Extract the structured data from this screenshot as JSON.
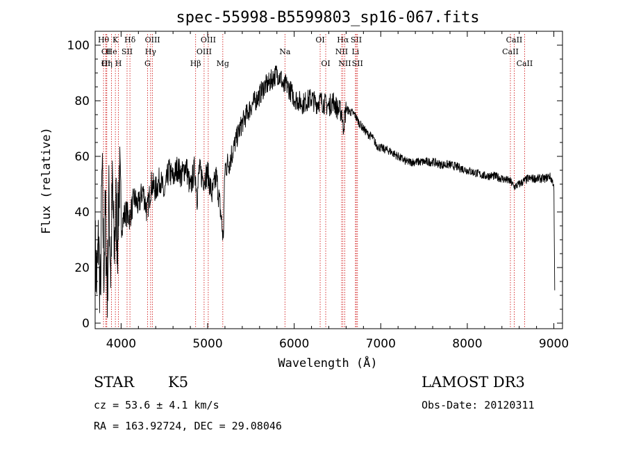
{
  "chart_data": {
    "type": "line",
    "title": "spec-55998-B5599803_sp16-067.fits",
    "xlabel": "Wavelength (Å)",
    "ylabel": "Flux (relative)",
    "xlim": [
      3700,
      9100
    ],
    "ylim": [
      -2,
      105
    ],
    "xticks": [
      4000,
      5000,
      6000,
      7000,
      8000,
      9000
    ],
    "yticks": [
      0,
      20,
      40,
      60,
      80,
      100
    ],
    "x": [
      3700,
      3720,
      3740,
      3760,
      3780,
      3800,
      3820,
      3840,
      3860,
      3880,
      3900,
      3920,
      3940,
      3960,
      3980,
      4000,
      4050,
      4100,
      4150,
      4200,
      4250,
      4300,
      4350,
      4400,
      4450,
      4500,
      4550,
      4600,
      4650,
      4700,
      4750,
      4800,
      4850,
      4880,
      4900,
      4950,
      5000,
      5050,
      5100,
      5150,
      5180,
      5200,
      5250,
      5300,
      5350,
      5400,
      5450,
      5500,
      5550,
      5600,
      5650,
      5700,
      5750,
      5800,
      5850,
      5880,
      5900,
      5950,
      6000,
      6050,
      6100,
      6150,
      6200,
      6250,
      6300,
      6350,
      6400,
      6450,
      6500,
      6550,
      6563,
      6600,
      6650,
      6700,
      6750,
      6800,
      6850,
      6900,
      6950,
      7000,
      7100,
      7200,
      7300,
      7400,
      7500,
      7600,
      7700,
      7800,
      7900,
      8000,
      8100,
      8200,
      8300,
      8400,
      8500,
      8540,
      8600,
      8650,
      8700,
      8800,
      8900,
      8950,
      9000,
      9010
    ],
    "values": [
      25,
      15,
      30,
      8,
      55,
      20,
      40,
      10,
      45,
      18,
      50,
      25,
      42,
      30,
      55,
      35,
      40,
      38,
      45,
      42,
      48,
      40,
      50,
      48,
      52,
      46,
      55,
      52,
      56,
      53,
      57,
      48,
      56,
      45,
      55,
      52,
      54,
      46,
      53,
      40,
      30,
      56,
      58,
      63,
      68,
      72,
      75,
      78,
      80,
      82,
      85,
      86,
      88,
      90,
      88,
      84,
      86,
      84,
      81,
      80,
      79,
      80,
      81,
      79,
      80,
      79,
      78,
      80,
      77,
      76,
      70,
      77,
      76,
      75,
      72,
      70,
      68,
      67,
      64,
      63,
      62,
      60,
      58,
      58,
      58,
      58,
      57,
      57,
      56,
      55,
      54,
      53,
      53,
      52,
      51,
      49,
      50,
      51,
      52,
      52,
      52,
      53,
      50,
      12
    ],
    "jitter_seed": 7,
    "lines": [
      {
        "label": "Hθ",
        "wl": 3797,
        "row": 1
      },
      {
        "label": "OI",
        "wl": 3825,
        "row": 2
      },
      {
        "label": "OI",
        "wl": 3825,
        "row": 3
      },
      {
        "label": "He",
        "wl": 3889,
        "row": 2
      },
      {
        "label": "Hη",
        "wl": 3835,
        "row": 3
      },
      {
        "label": "K",
        "wl": 3934,
        "row": 1
      },
      {
        "label": "H",
        "wl": 3969,
        "row": 3
      },
      {
        "label": "SII",
        "wl": 4069,
        "row": 2
      },
      {
        "label": "Hδ",
        "wl": 4102,
        "row": 1
      },
      {
        "label": "OIII",
        "wl": 4363,
        "row": 1
      },
      {
        "label": "Hγ",
        "wl": 4341,
        "row": 2
      },
      {
        "label": "G",
        "wl": 4305,
        "row": 3
      },
      {
        "label": "Hβ",
        "wl": 4861,
        "row": 3
      },
      {
        "label": "OIII",
        "wl": 5007,
        "row": 1
      },
      {
        "label": "OIII",
        "wl": 4959,
        "row": 2
      },
      {
        "label": "Mg",
        "wl": 5175,
        "row": 3
      },
      {
        "label": "Na",
        "wl": 5893,
        "row": 2
      },
      {
        "label": "OI",
        "wl": 6300,
        "row": 1
      },
      {
        "label": "OI",
        "wl": 6364,
        "row": 3
      },
      {
        "label": "Hα",
        "wl": 6563,
        "row": 1
      },
      {
        "label": "NII",
        "wl": 6548,
        "row": 2
      },
      {
        "label": "NII",
        "wl": 6584,
        "row": 3
      },
      {
        "label": "SII",
        "wl": 6717,
        "row": 1
      },
      {
        "label": "Li",
        "wl": 6708,
        "row": 2
      },
      {
        "label": "SII",
        "wl": 6731,
        "row": 3
      },
      {
        "label": "CaII",
        "wl": 8542,
        "row": 1
      },
      {
        "label": "CaII",
        "wl": 8498,
        "row": 2
      },
      {
        "label": "CaII",
        "wl": 8662,
        "row": 3
      }
    ]
  },
  "info": {
    "class": "STAR",
    "subclass": "K5",
    "survey": "LAMOST DR3",
    "cz": "cz = 53.6 ± 4.1 km/s",
    "obs_date": "Obs-Date: 20120311",
    "coords": "RA = 163.92724, DEC =  29.08046"
  },
  "colors": {
    "spectrum": "#000000",
    "line_marker": "#cc0000",
    "axes": "#000000"
  }
}
